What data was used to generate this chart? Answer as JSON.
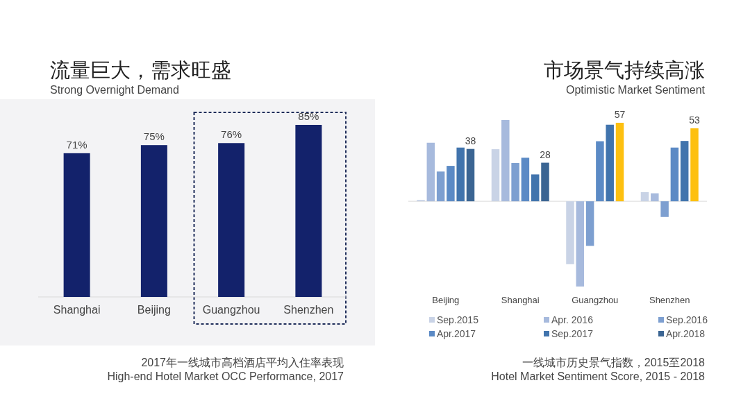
{
  "chart_data": [
    {
      "type": "bar",
      "title": "流量巨大，需求旺盛",
      "subtitle": "Strong Overnight Demand",
      "annotations": [
        "2017年一线城市高档酒店平均入住率表现",
        "High-end Hotel Market OCC Performance, 2017"
      ],
      "categories": [
        "Shanghai",
        "Beijing",
        "Guangzhou",
        "Shenzhen"
      ],
      "values": [
        71,
        75,
        76,
        85
      ],
      "value_labels": [
        "71%",
        "75%",
        "76%",
        "85%"
      ],
      "color": "#13226b",
      "legend": false
    },
    {
      "type": "bar",
      "title": "市场景气持续高涨",
      "subtitle": "Optimistic Market Sentiment",
      "annotations": [
        "一线城市历史景气指数，2015至2018",
        "Hotel Market Sentiment Score, 2015 - 2018"
      ],
      "categories": [
        "Beijing",
        "Shanghai",
        "Guangzhou",
        "Shenzhen"
      ],
      "series": [
        {
          "name": "Sep.2015",
          "color": "#c9d3e6",
          "values": [
            1,
            37.8,
            -45.7,
            6.6
          ]
        },
        {
          "name": "Apr. 2016",
          "color": "#a7badd",
          "values": [
            42.5,
            59,
            -61.9,
            5.8
          ]
        },
        {
          "name": "Sep.2016",
          "color": "#7d9fd0",
          "values": [
            21.6,
            27.8,
            -32.4,
            -11.4
          ]
        },
        {
          "name": "Apr.2017",
          "color": "#5b8ac5",
          "values": [
            25.7,
            31.6,
            43.6,
            39
          ]
        },
        {
          "name": "Sep.2017",
          "color": "#4174ad",
          "values": [
            39,
            19.5,
            55.6,
            43.8
          ]
        },
        {
          "name": "Apr.2018",
          "color": "#3b6593",
          "colors": [
            "#3b6593",
            "#3b6593",
            "#fdc010",
            "#fdc010"
          ],
          "values": [
            38,
            28,
            57,
            53
          ],
          "value_labels": [
            "38",
            "28",
            "57",
            "53"
          ]
        }
      ],
      "legend": "bottom"
    }
  ]
}
